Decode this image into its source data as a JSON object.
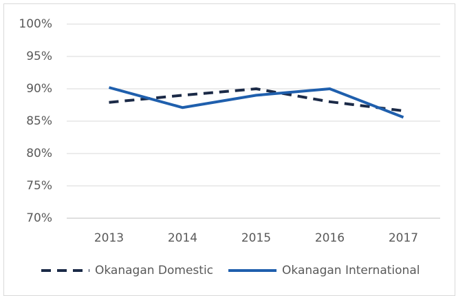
{
  "chart_data": {
    "type": "line",
    "categories": [
      "2013",
      "2014",
      "2015",
      "2016",
      "2017"
    ],
    "series": [
      {
        "name": "Okanagan Domestic",
        "color": "#1b2a47",
        "dash": true,
        "values": [
          87.9,
          89.0,
          90.0,
          88.0,
          86.6
        ]
      },
      {
        "name": "Okanagan International",
        "color": "#1f5fad",
        "dash": false,
        "values": [
          90.2,
          87.1,
          89.0,
          90.0,
          85.6
        ]
      }
    ],
    "ylim": [
      70,
      100
    ],
    "yticks": [
      {
        "value": 70,
        "label": "70%"
      },
      {
        "value": 75,
        "label": "75%"
      },
      {
        "value": 80,
        "label": "80%"
      },
      {
        "value": 85,
        "label": "85%"
      },
      {
        "value": 90,
        "label": "90%"
      },
      {
        "value": 95,
        "label": "95%"
      },
      {
        "value": 100,
        "label": "100%"
      }
    ],
    "grid": true,
    "legend": "bottom"
  }
}
